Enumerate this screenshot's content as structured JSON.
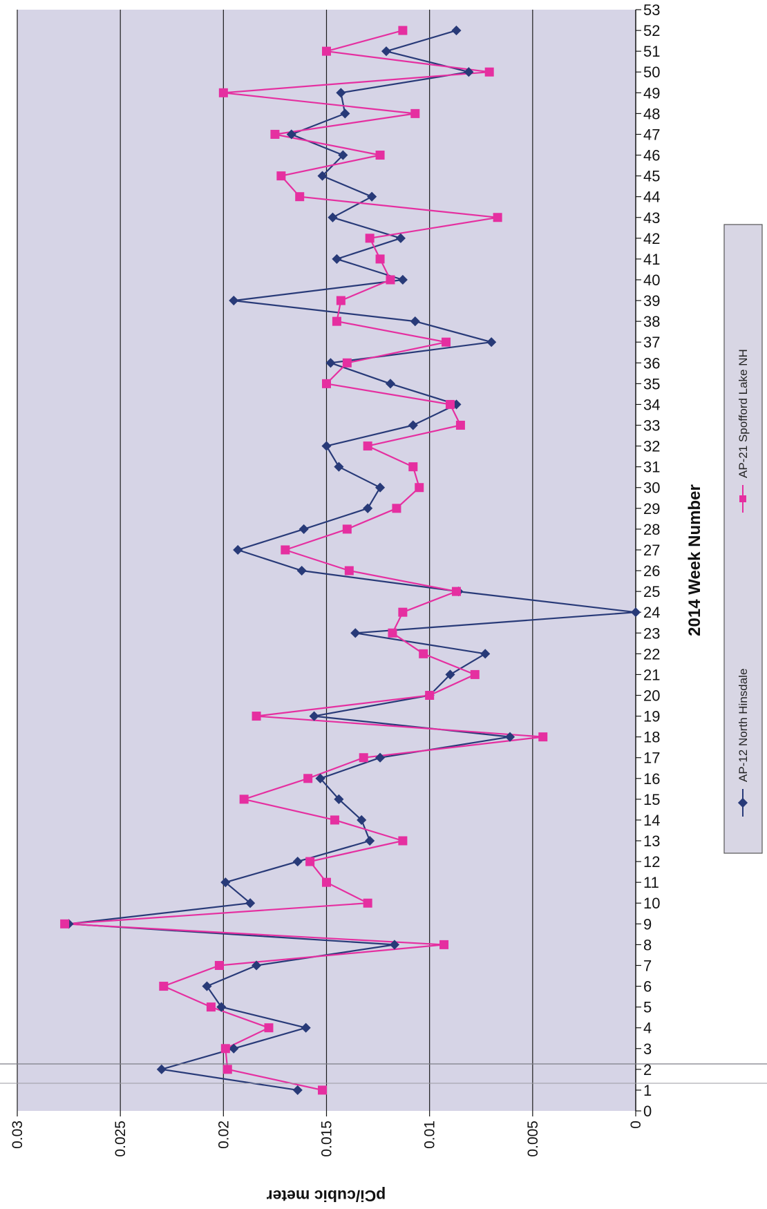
{
  "chart_data": {
    "type": "line",
    "orientation": "rotated 90 degrees clockwise",
    "xlabel": "2014 Week Number",
    "ylabel": "pCi/cubic meter",
    "xlim": [
      0,
      53
    ],
    "ylim": [
      0,
      0.03
    ],
    "x_ticks": [
      0,
      1,
      2,
      3,
      4,
      5,
      6,
      7,
      8,
      9,
      10,
      11,
      12,
      13,
      14,
      15,
      16,
      17,
      18,
      19,
      20,
      21,
      22,
      23,
      24,
      25,
      26,
      27,
      28,
      29,
      30,
      31,
      32,
      33,
      34,
      35,
      36,
      37,
      38,
      39,
      40,
      41,
      42,
      43,
      44,
      45,
      46,
      47,
      48,
      49,
      50,
      51,
      52,
      53
    ],
    "y_ticks": [
      "0.03",
      "0.025",
      "0.02",
      "0.015",
      "0.01",
      "0.005",
      "0"
    ],
    "y_tick_values": [
      0.03,
      0.025,
      0.02,
      0.015,
      0.01,
      0.005,
      0
    ],
    "grid": "major gridlines on value axis",
    "legend_position": "right",
    "series": [
      {
        "name": "AP-12 North Hinsdale",
        "color": "#283a78",
        "marker": "diamond",
        "x": [
          1,
          2,
          3,
          4,
          5,
          6,
          7,
          8,
          9,
          10,
          11,
          12,
          13,
          14,
          15,
          16,
          17,
          18,
          19,
          20,
          21,
          22,
          23,
          24,
          25,
          26,
          27,
          28,
          29,
          30,
          31,
          32,
          33,
          34,
          35,
          36,
          37,
          38,
          39,
          40,
          41,
          42,
          43,
          44,
          45,
          46,
          47,
          48,
          49,
          50,
          51,
          52
        ],
        "y": [
          0.0164,
          0.023,
          0.0195,
          0.016,
          0.0201,
          0.0208,
          0.0184,
          0.0117,
          0.0275,
          0.0187,
          0.0199,
          0.0164,
          0.0129,
          0.0133,
          0.0144,
          0.0153,
          0.0124,
          0.0061,
          0.0156,
          0.01,
          0.009,
          0.0073,
          0.0136,
          0.0,
          0.0086,
          0.0162,
          0.0193,
          0.0161,
          0.013,
          0.0124,
          0.0144,
          0.015,
          0.0108,
          0.0087,
          0.0119,
          0.0148,
          0.007,
          0.0107,
          0.0195,
          0.0113,
          0.0145,
          0.0114,
          0.0147,
          0.0128,
          0.0152,
          0.0142,
          0.0167,
          0.0141,
          0.0143,
          0.0081,
          0.0121,
          0.0087
        ]
      },
      {
        "name": "AP-21 Spofford Lake NH",
        "color": "#e52fa0",
        "marker": "square",
        "x": [
          1,
          2,
          3,
          4,
          5,
          6,
          7,
          8,
          9,
          10,
          11,
          12,
          13,
          14,
          15,
          16,
          17,
          18,
          19,
          20,
          21,
          22,
          23,
          24,
          25,
          26,
          27,
          28,
          29,
          30,
          31,
          32,
          33,
          34,
          35,
          36,
          37,
          38,
          39,
          40,
          41,
          42,
          43,
          44,
          45,
          46,
          47,
          48,
          49,
          50,
          51,
          52
        ],
        "y": [
          0.0152,
          0.0198,
          0.0199,
          0.0178,
          0.0206,
          0.0229,
          0.0202,
          0.0093,
          0.0277,
          0.013,
          0.015,
          0.0158,
          0.0113,
          0.0146,
          0.019,
          0.0159,
          0.0132,
          0.0045,
          0.0184,
          0.01,
          0.0078,
          0.0103,
          0.0118,
          0.0113,
          0.0087,
          0.0139,
          0.017,
          0.014,
          0.0116,
          0.0105,
          0.0108,
          0.013,
          0.0085,
          0.009,
          0.015,
          0.014,
          0.0092,
          0.0145,
          0.0143,
          0.0119,
          0.0124,
          0.0129,
          0.0067,
          0.0163,
          0.0172,
          0.0124,
          0.0175,
          0.0107,
          0.02,
          0.0071,
          0.015,
          0.0113
        ]
      }
    ]
  }
}
